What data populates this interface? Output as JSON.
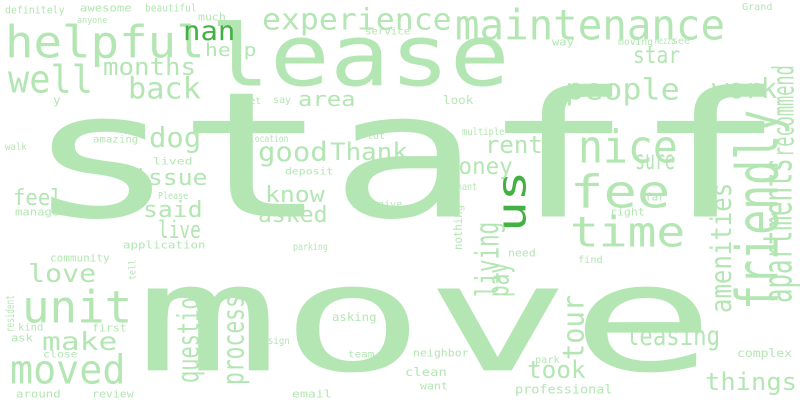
{
  "words": [
    {
      "text": "staff"
    },
    {
      "text": "move"
    },
    {
      "text": "lease"
    },
    {
      "text": "maintenance"
    },
    {
      "text": "helpful"
    },
    {
      "text": "unit"
    },
    {
      "text": "friendly"
    },
    {
      "text": "fee"
    },
    {
      "text": "nice"
    },
    {
      "text": "time"
    },
    {
      "text": "us",
      "accent": true
    },
    {
      "text": "moved"
    },
    {
      "text": "well"
    },
    {
      "text": "back"
    },
    {
      "text": "experience"
    },
    {
      "text": "people"
    },
    {
      "text": "nan",
      "accent": true
    },
    {
      "text": "work"
    },
    {
      "text": "recommend"
    },
    {
      "text": "apartments"
    },
    {
      "text": "amenities"
    },
    {
      "text": "months"
    },
    {
      "text": "good"
    },
    {
      "text": "Thank"
    },
    {
      "text": "dog"
    },
    {
      "text": "rent"
    },
    {
      "text": "money"
    },
    {
      "text": "love"
    },
    {
      "text": "make"
    },
    {
      "text": "live"
    },
    {
      "text": "issue"
    },
    {
      "text": "said"
    },
    {
      "text": "feel"
    },
    {
      "text": "know"
    },
    {
      "text": "asked"
    },
    {
      "text": "star"
    },
    {
      "text": "sure"
    },
    {
      "text": "tour"
    },
    {
      "text": "leasing"
    },
    {
      "text": "took"
    },
    {
      "text": "things"
    },
    {
      "text": "living"
    },
    {
      "text": "pay"
    },
    {
      "text": "process"
    },
    {
      "text": "question"
    },
    {
      "text": "area"
    },
    {
      "text": "help"
    },
    {
      "text": "definitely"
    },
    {
      "text": "awesome"
    },
    {
      "text": "beautiful"
    },
    {
      "text": "much"
    },
    {
      "text": "anyone"
    },
    {
      "text": "service"
    },
    {
      "text": "way"
    },
    {
      "text": "moving"
    },
    {
      "text": "Mezzo"
    },
    {
      "text": "see"
    },
    {
      "text": "Grand"
    },
    {
      "text": "look"
    },
    {
      "text": "let"
    },
    {
      "text": "say"
    },
    {
      "text": "y"
    },
    {
      "text": "amazing"
    },
    {
      "text": "go"
    },
    {
      "text": "location"
    },
    {
      "text": "lot"
    },
    {
      "text": "multiple"
    },
    {
      "text": "walk"
    },
    {
      "text": "lived"
    },
    {
      "text": "deposit"
    },
    {
      "text": "tenant"
    },
    {
      "text": "Please"
    },
    {
      "text": "manager"
    },
    {
      "text": "give"
    },
    {
      "text": "nothing"
    },
    {
      "text": "right"
    },
    {
      "text": "far"
    },
    {
      "text": "application"
    },
    {
      "text": "community"
    },
    {
      "text": "parking"
    },
    {
      "text": "need"
    },
    {
      "text": "find"
    },
    {
      "text": "tell"
    },
    {
      "text": "resident"
    },
    {
      "text": "kind"
    },
    {
      "text": "ask"
    },
    {
      "text": "first"
    },
    {
      "text": "asking"
    },
    {
      "text": "sign"
    },
    {
      "text": "close"
    },
    {
      "text": "team"
    },
    {
      "text": "neighbor"
    },
    {
      "text": "park"
    },
    {
      "text": "complex"
    },
    {
      "text": "clean"
    },
    {
      "text": "want"
    },
    {
      "text": "professional"
    },
    {
      "text": "around"
    },
    {
      "text": "review"
    },
    {
      "text": "email"
    }
  ]
}
